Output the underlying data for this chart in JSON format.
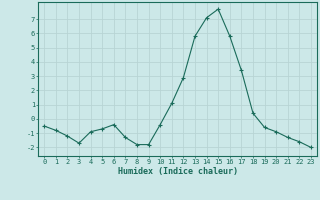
{
  "x": [
    0,
    1,
    2,
    3,
    4,
    5,
    6,
    7,
    8,
    9,
    10,
    11,
    12,
    13,
    14,
    15,
    16,
    17,
    18,
    19,
    20,
    21,
    22,
    23
  ],
  "y": [
    -0.5,
    -0.8,
    -1.2,
    -1.7,
    -0.9,
    -0.7,
    -0.4,
    -1.3,
    -1.8,
    -1.8,
    -0.4,
    1.1,
    2.9,
    5.8,
    7.1,
    7.7,
    5.8,
    3.4,
    0.4,
    -0.6,
    -0.9,
    -1.3,
    -1.6,
    -2.0
  ],
  "line_color": "#1a6b5a",
  "marker": "+",
  "marker_size": 3,
  "marker_lw": 0.8,
  "bg_color": "#cce8e8",
  "grid_color": "#b8d4d4",
  "xlabel": "Humidex (Indice chaleur)",
  "ylim": [
    -2.6,
    8.2
  ],
  "xlim": [
    -0.5,
    23.5
  ],
  "yticks": [
    -2,
    -1,
    0,
    1,
    2,
    3,
    4,
    5,
    6,
    7
  ],
  "xticks": [
    0,
    1,
    2,
    3,
    4,
    5,
    6,
    7,
    8,
    9,
    10,
    11,
    12,
    13,
    14,
    15,
    16,
    17,
    18,
    19,
    20,
    21,
    22,
    23
  ],
  "tick_color": "#1a6b5a",
  "label_color": "#1a6b5a",
  "spine_color": "#1a6b5a",
  "tick_fontsize": 5.0,
  "xlabel_fontsize": 6.0,
  "linewidth": 0.8
}
